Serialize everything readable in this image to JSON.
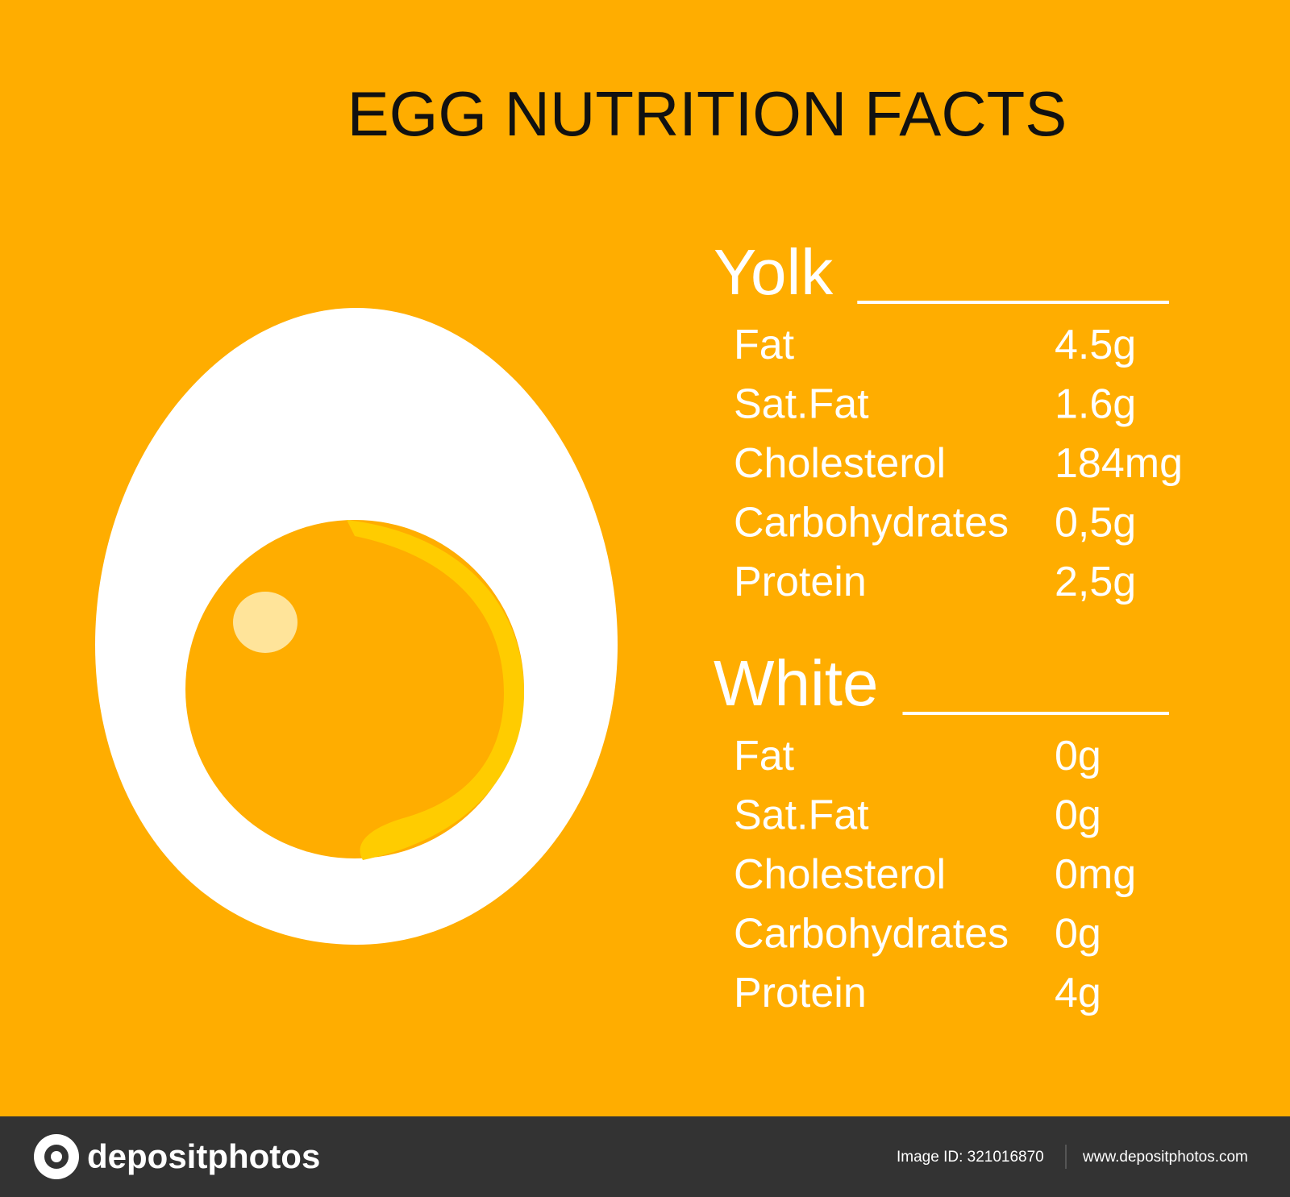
{
  "header": {
    "title": "EGG NUTRITION FACTS"
  },
  "sections": [
    {
      "title": "Yolk",
      "rows": [
        [
          "Fat",
          "4.5g"
        ],
        [
          "Sat.Fat",
          "1.6g"
        ],
        [
          "Cholesterol",
          "184mg"
        ],
        [
          "Carbohydrates",
          "0,5g"
        ],
        [
          "Protein",
          "2,5g"
        ]
      ]
    },
    {
      "title": "White",
      "rows": [
        [
          "Fat",
          "0g"
        ],
        [
          "Sat.Fat",
          "0g"
        ],
        [
          "Cholesterol",
          "0mg"
        ],
        [
          "Carbohydrates",
          "0g"
        ],
        [
          "Protein",
          "4g"
        ]
      ]
    }
  ],
  "footer": {
    "brand": "depositphotos",
    "image_id": "Image ID: 321016870",
    "url": "www.depositphotos.com"
  }
}
